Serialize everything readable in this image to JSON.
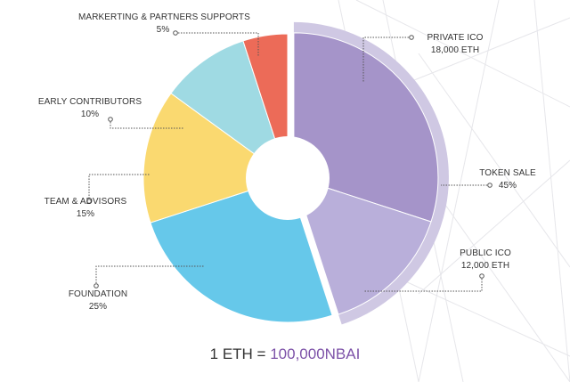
{
  "chart_data": {
    "type": "pie",
    "slices": [
      {
        "label": "PRIVATE ICO",
        "value_text": "18,000 ETH",
        "start": 0,
        "end": 30,
        "color": "#a594c9"
      },
      {
        "label": "PUBLIC ICO",
        "value_text": "12,000 ETH",
        "start": 30,
        "end": 45,
        "color": "#b9afda"
      },
      {
        "label": "FOUNDATION",
        "value_text": "25%",
        "start": 45,
        "end": 70,
        "color": "#66c8ea"
      },
      {
        "label": "TEAM & ADVISORS",
        "value_text": "15%",
        "start": 70,
        "end": 85,
        "color": "#fad970"
      },
      {
        "label": "EARLY CONTRIBUTORS",
        "value_text": "10%",
        "start": 85,
        "end": 95,
        "color": "#9fdae3"
      },
      {
        "label": "MARKERTING & PARTNERS SUPPORTS",
        "value_text": "5%",
        "start": 95,
        "end": 100,
        "color": "#ec6b58"
      }
    ],
    "group": {
      "label": "TOKEN SALE",
      "value_text": "45%",
      "start": 0,
      "end": 45,
      "color": "#cfc8e3"
    }
  },
  "footer": {
    "prefix": "1 ETH = ",
    "value": "100,000NBAI"
  },
  "colors": {
    "leader": "#555555",
    "background_lines": "#e6e6ea",
    "accent": "#7d52a8"
  }
}
